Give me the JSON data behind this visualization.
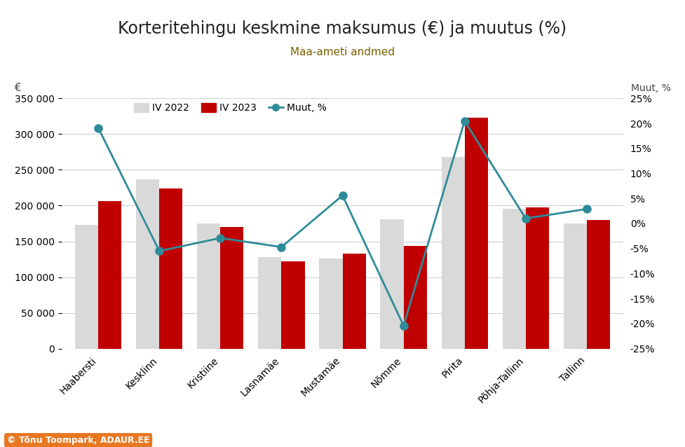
{
  "title": "Korteritehingu keskmine maksumus (€) ja muutus (%)",
  "subtitle": "Maa-ameti andmed",
  "categories": [
    "Haabersti",
    "Kesklinn",
    "Kristiine",
    "Lasnamäe",
    "Mustamäe",
    "Nõmme",
    "Pirita",
    "Põhja-Tallinn",
    "Tallinn"
  ],
  "iv2022": [
    173000,
    237000,
    175000,
    128000,
    126000,
    181000,
    268000,
    196000,
    175000
  ],
  "iv2023": [
    206000,
    224000,
    170000,
    122000,
    133000,
    144000,
    323000,
    198000,
    180000
  ],
  "muut_pct": [
    19.1,
    -5.5,
    -2.9,
    -4.7,
    5.6,
    -20.4,
    20.5,
    1.0,
    2.9
  ],
  "bar_color_2022": "#d9d9d9",
  "bar_color_2023": "#c00000",
  "line_color": "#2e8b9a",
  "ylim_left": [
    0,
    350000
  ],
  "ylim_right": [
    -25,
    25
  ],
  "yticks_left": [
    0,
    50000,
    100000,
    150000,
    200000,
    250000,
    300000,
    350000
  ],
  "yticks_right": [
    -25,
    -20,
    -15,
    -10,
    -5,
    0,
    5,
    10,
    15,
    20,
    25
  ],
  "background_color": "#ffffff",
  "legend_labels": [
    "IV 2022",
    "IV 2023",
    "Muut, %"
  ],
  "watermark": "© Tõnu Toompark, ADAUR.EE",
  "title_fontsize": 17,
  "subtitle_fontsize": 11,
  "tick_fontsize": 10,
  "legend_fontsize": 10,
  "bar_width": 0.38
}
